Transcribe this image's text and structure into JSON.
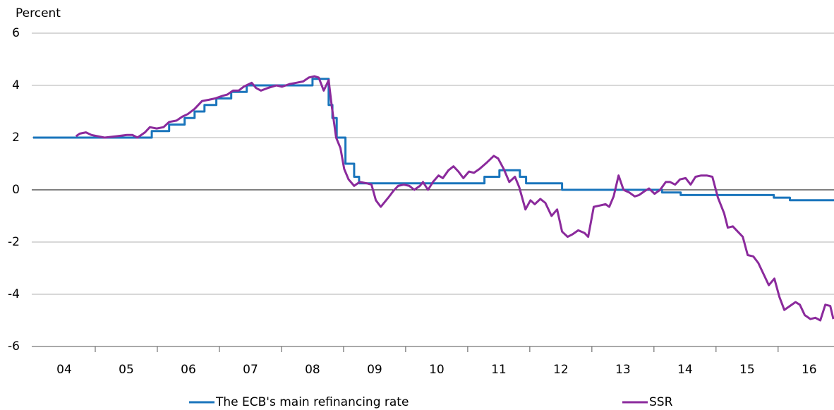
{
  "chart_data": {
    "type": "line",
    "y_label": "Percent",
    "xlim": [
      2004,
      2016.9
    ],
    "ylim": [
      -6,
      6
    ],
    "yticks": [
      -6,
      -4,
      -2,
      0,
      2,
      4,
      6
    ],
    "xticks": [
      {
        "value": 2004.5,
        "label": "04"
      },
      {
        "value": 2005.5,
        "label": "05"
      },
      {
        "value": 2006.5,
        "label": "06"
      },
      {
        "value": 2007.5,
        "label": "07"
      },
      {
        "value": 2008.5,
        "label": "08"
      },
      {
        "value": 2009.5,
        "label": "09"
      },
      {
        "value": 2010.5,
        "label": "10"
      },
      {
        "value": 2011.5,
        "label": "11"
      },
      {
        "value": 2012.5,
        "label": "12"
      },
      {
        "value": 2013.5,
        "label": "13"
      },
      {
        "value": 2014.5,
        "label": "14"
      },
      {
        "value": 2015.5,
        "label": "15"
      },
      {
        "value": 2016.5,
        "label": "16"
      }
    ],
    "grid": true,
    "legend": "bottom",
    "series": [
      {
        "name": "The ECB's main refinancing rate",
        "color": "#1a75bc",
        "x": [
          2004,
          2005.91,
          2005.91,
          2006.19,
          2006.19,
          2006.44,
          2006.44,
          2006.6,
          2006.6,
          2006.76,
          2006.76,
          2006.95,
          2006.95,
          2007.19,
          2007.19,
          2007.44,
          2007.44,
          2008.5,
          2008.5,
          2008.76,
          2008.76,
          2008.82,
          2008.82,
          2008.89,
          2008.89,
          2009.03,
          2009.03,
          2009.17,
          2009.17,
          2009.25,
          2009.25,
          2011.27,
          2011.27,
          2011.51,
          2011.51,
          2011.84,
          2011.84,
          2011.94,
          2011.94,
          2012.52,
          2012.52,
          2014.13,
          2014.13,
          2014.43,
          2014.43,
          2015.93,
          2015.93,
          2016.19,
          2016.19,
          2016.9
        ],
        "values": [
          2,
          2,
          2.25,
          2.25,
          2.5,
          2.5,
          2.75,
          2.75,
          3,
          3,
          3.25,
          3.25,
          3.5,
          3.5,
          3.75,
          3.75,
          4,
          4,
          4.25,
          4.25,
          3.25,
          3.25,
          2.75,
          2.75,
          2,
          2,
          1,
          1,
          0.5,
          0.5,
          0.25,
          0.25,
          0.5,
          0.5,
          0.75,
          0.75,
          0.5,
          0.5,
          0.25,
          0.25,
          0,
          0,
          -0.1,
          -0.1,
          -0.2,
          -0.2,
          -0.3,
          -0.3,
          -0.4,
          -0.4
        ]
      },
      {
        "name": "SSR",
        "color": "#8b2a9c",
        "x": [
          2004.69,
          2004.75,
          2004.85,
          2004.94,
          2005.15,
          2005.34,
          2005.51,
          2005.6,
          2005.68,
          2005.8,
          2005.88,
          2005.99,
          2006.1,
          2006.19,
          2006.31,
          2006.4,
          2006.49,
          2006.6,
          2006.72,
          2006.83,
          2006.93,
          2007.05,
          2007.13,
          2007.22,
          2007.31,
          2007.39,
          2007.52,
          2007.59,
          2007.67,
          2007.78,
          2007.92,
          2008.01,
          2008.13,
          2008.24,
          2008.35,
          2008.44,
          2008.53,
          2008.6,
          2008.68,
          2008.76,
          2008.81,
          2008.88,
          2008.95,
          2009.01,
          2009.08,
          2009.17,
          2009.26,
          2009.38,
          2009.45,
          2009.52,
          2009.6,
          2009.72,
          2009.8,
          2009.88,
          2009.97,
          2010.06,
          2010.14,
          2010.23,
          2010.28,
          2010.36,
          2010.44,
          2010.53,
          2010.6,
          2010.69,
          2010.77,
          2010.85,
          2010.93,
          2011.02,
          2011.1,
          2011.19,
          2011.31,
          2011.42,
          2011.49,
          2011.58,
          2011.67,
          2011.76,
          2011.83,
          2011.93,
          2012.01,
          2012.08,
          2012.17,
          2012.25,
          2012.35,
          2012.44,
          2012.52,
          2012.61,
          2012.69,
          2012.78,
          2012.88,
          2012.94,
          2013.03,
          2013.13,
          2013.22,
          2013.28,
          2013.35,
          2013.43,
          2013.51,
          2013.6,
          2013.69,
          2013.76,
          2013.85,
          2013.92,
          2014.01,
          2014.1,
          2014.19,
          2014.26,
          2014.34,
          2014.42,
          2014.51,
          2014.59,
          2014.67,
          2014.76,
          2014.85,
          2014.94,
          2015.03,
          2015.13,
          2015.19,
          2015.27,
          2015.35,
          2015.43,
          2015.51,
          2015.6,
          2015.68,
          2015.76,
          2015.85,
          2015.94,
          2016.02,
          2016.1,
          2016.19,
          2016.28,
          2016.35,
          2016.43,
          2016.52,
          2016.6,
          2016.68,
          2016.76,
          2016.84,
          2016.89
        ],
        "values": [
          2.05,
          2.15,
          2.2,
          2.1,
          2.0,
          2.05,
          2.1,
          2.1,
          2.0,
          2.2,
          2.4,
          2.35,
          2.4,
          2.6,
          2.65,
          2.8,
          2.9,
          3.1,
          3.4,
          3.45,
          3.5,
          3.6,
          3.65,
          3.8,
          3.8,
          3.95,
          4.1,
          3.9,
          3.8,
          3.9,
          4.0,
          3.95,
          4.05,
          4.1,
          4.15,
          4.3,
          4.35,
          4.3,
          3.8,
          4.2,
          3.2,
          2.0,
          1.6,
          0.8,
          0.4,
          0.15,
          0.3,
          0.25,
          0.2,
          -0.4,
          -0.65,
          -0.3,
          -0.05,
          0.15,
          0.2,
          0.15,
          0.0,
          0.15,
          0.3,
          0.0,
          0.3,
          0.55,
          0.45,
          0.75,
          0.9,
          0.7,
          0.45,
          0.7,
          0.65,
          0.8,
          1.05,
          1.3,
          1.2,
          0.8,
          0.3,
          0.5,
          0.1,
          -0.75,
          -0.4,
          -0.55,
          -0.35,
          -0.5,
          -1.0,
          -0.75,
          -1.6,
          -1.8,
          -1.7,
          -1.55,
          -1.65,
          -1.8,
          -0.65,
          -0.6,
          -0.55,
          -0.65,
          -0.25,
          0.55,
          0.0,
          -0.1,
          -0.25,
          -0.2,
          -0.05,
          0.05,
          -0.15,
          0.0,
          0.3,
          0.3,
          0.2,
          0.4,
          0.45,
          0.2,
          0.5,
          0.55,
          0.55,
          0.5,
          -0.3,
          -0.9,
          -1.45,
          -1.4,
          -1.6,
          -1.8,
          -2.5,
          -2.55,
          -2.8,
          -3.2,
          -3.65,
          -3.4,
          -4.1,
          -4.6,
          -4.45,
          -4.3,
          -4.4,
          -4.8,
          -4.95,
          -4.9,
          -5.0,
          -4.4,
          -4.45,
          -4.95
        ]
      }
    ]
  }
}
